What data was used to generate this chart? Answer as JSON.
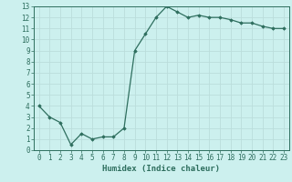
{
  "x": [
    0,
    1,
    2,
    3,
    4,
    5,
    6,
    7,
    8,
    9,
    10,
    11,
    12,
    13,
    14,
    15,
    16,
    17,
    18,
    19,
    20,
    21,
    22,
    23
  ],
  "y": [
    4.0,
    3.0,
    2.5,
    0.5,
    1.5,
    1.0,
    1.2,
    1.2,
    2.0,
    9.0,
    10.5,
    12.0,
    13.0,
    12.5,
    12.0,
    12.2,
    12.0,
    12.0,
    11.8,
    11.5,
    11.5,
    11.2,
    11.0,
    11.0
  ],
  "line_color": "#2E6E5E",
  "marker": "D",
  "marker_size": 1.8,
  "line_width": 0.9,
  "xlabel": "Humidex (Indice chaleur)",
  "xlim": [
    -0.5,
    23.5
  ],
  "ylim": [
    0,
    13
  ],
  "xtick_labels": [
    "0",
    "1",
    "2",
    "3",
    "4",
    "5",
    "6",
    "7",
    "8",
    "9",
    "10",
    "11",
    "12",
    "13",
    "14",
    "15",
    "16",
    "17",
    "18",
    "19",
    "20",
    "21",
    "22",
    "23"
  ],
  "ytick_values": [
    0,
    1,
    2,
    3,
    4,
    5,
    6,
    7,
    8,
    9,
    10,
    11,
    12,
    13
  ],
  "bg_color": "#CCF0EE",
  "grid_color": "#BBDDDB",
  "tick_color": "#2E6E5E",
  "label_fontsize": 6.5,
  "tick_fontsize": 5.5
}
